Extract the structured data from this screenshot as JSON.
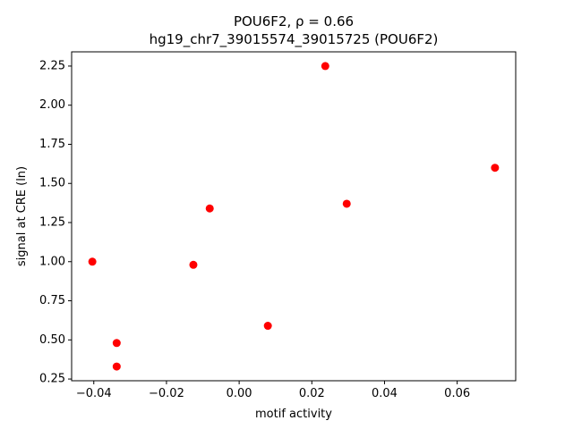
{
  "chart_data": {
    "type": "scatter",
    "title": "POU6F2, ρ = 0.66",
    "subtitle": "hg19_chr7_39015574_39015725 (POU6F2)",
    "x_label": "motif activity",
    "y_label": "signal at CRE (ln)",
    "color": "#ff0000",
    "x": [
      0.0237,
      0.0704,
      0.0296,
      -0.0081,
      -0.0404,
      -0.0126,
      0.0079,
      -0.0337,
      -0.0337
    ],
    "values": [
      2.25,
      1.6,
      1.37,
      1.34,
      1.0,
      0.98,
      0.59,
      0.48,
      0.33
    ],
    "xlim": [
      -0.0461,
      0.0761
    ],
    "ylim": [
      0.239,
      2.341
    ],
    "xticks": [
      {
        "value": -0.04,
        "label": "−0.04"
      },
      {
        "value": -0.02,
        "label": "−0.02"
      },
      {
        "value": 0,
        "label": "0.00"
      },
      0.02,
      0.04,
      0.06
    ],
    "yticks": [
      0.25,
      {
        "value": 0.5,
        "label": "0.50"
      },
      0.75,
      {
        "value": 1,
        "label": "1.00"
      },
      1.25,
      {
        "value": 1.5,
        "label": "1.50"
      },
      1.75,
      {
        "value": 2,
        "label": "2.00"
      },
      2.25
    ]
  }
}
